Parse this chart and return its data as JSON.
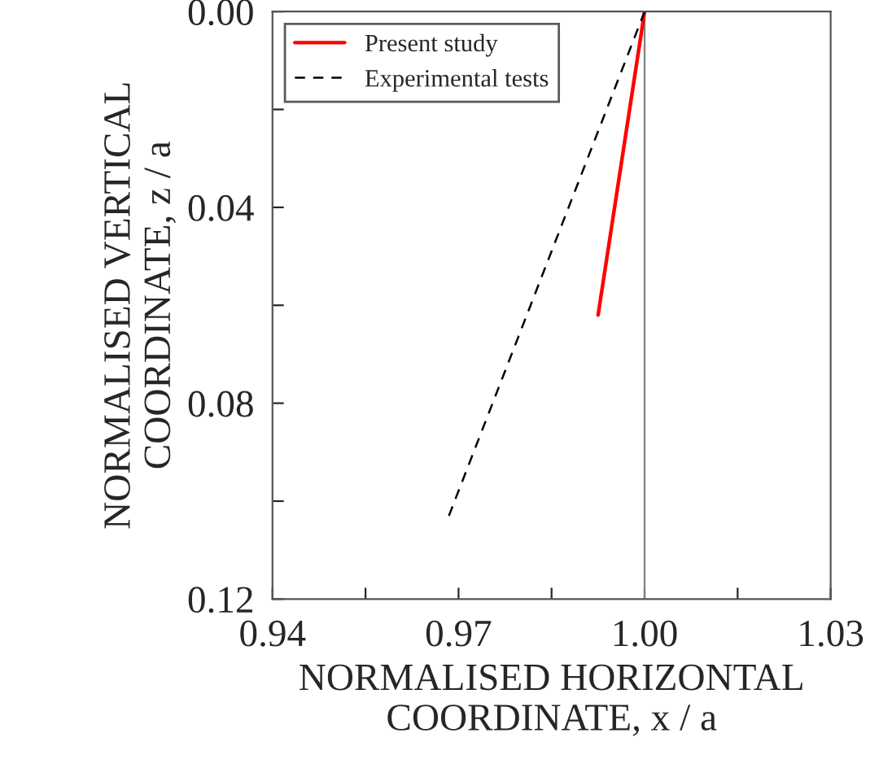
{
  "chart_data": {
    "type": "line",
    "xlabel": "NORMALISED HORIZONTAL COORDINATE, x / a",
    "ylabel": "NORMALISED VERTICAL COORDINATE, z / a",
    "series": [
      {
        "name": "Present study",
        "color": "#ff0000",
        "line_style": "solid",
        "x": [
          1.0,
          0.9925
        ],
        "values": [
          0.0,
          0.062
        ]
      },
      {
        "name": "Experimental tests",
        "color": "#000000",
        "line_style": "dashed",
        "x": [
          1.0,
          0.9682
        ],
        "values": [
          0.0,
          0.1038
        ]
      }
    ],
    "xlim": [
      0.94,
      1.03
    ],
    "xticks": [
      {
        "value": 0.94,
        "label": "0.94"
      },
      {
        "value": 0.955,
        "label": null
      },
      {
        "value": 0.97,
        "label": "0.97"
      },
      {
        "value": 0.985,
        "label": null
      },
      {
        "value": 1.0,
        "label": "1.00"
      },
      {
        "value": 1.015,
        "label": null
      },
      {
        "value": 1.03,
        "label": "1.03"
      }
    ],
    "ylim": [
      0.12,
      0.0
    ],
    "yticks": [
      {
        "value": 0.0,
        "label": "0.00"
      },
      {
        "value": 0.02,
        "label": null
      },
      {
        "value": 0.04,
        "label": "0.04"
      },
      {
        "value": 0.06,
        "label": null
      },
      {
        "value": 0.08,
        "label": "0.08"
      },
      {
        "value": 0.1,
        "label": null
      },
      {
        "value": 0.12,
        "label": "0.12"
      }
    ],
    "ref_lines": [
      {
        "axis": "x",
        "value": 1.0,
        "color": "#808080",
        "line_style": "solid"
      }
    ],
    "legend": "top left",
    "grid": false
  }
}
